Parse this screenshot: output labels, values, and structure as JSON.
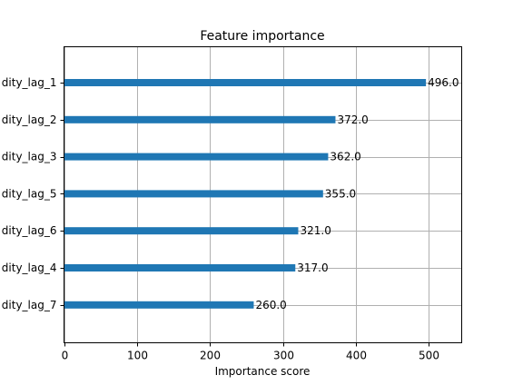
{
  "chart_data": {
    "type": "bar",
    "orientation": "horizontal",
    "title": "Feature importance",
    "xlabel": "Importance score",
    "ylabel": "",
    "xlim": [
      0,
      545
    ],
    "xticks": [
      0,
      100,
      200,
      300,
      400,
      500
    ],
    "grid": true,
    "bar_color": "#1f77b4",
    "categories": [
      "dity_lag_1",
      "dity_lag_2",
      "dity_lag_3",
      "dity_lag_5",
      "dity_lag_6",
      "dity_lag_4",
      "dity_lag_7"
    ],
    "values": [
      496,
      372,
      362,
      355,
      321,
      317,
      260
    ],
    "data_labels": [
      "496.0",
      "372.0",
      "362.0",
      "355.0",
      "321.0",
      "317.0",
      "260.0"
    ]
  }
}
